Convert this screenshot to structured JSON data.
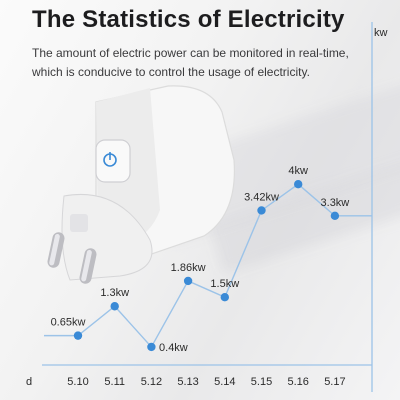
{
  "header": {
    "title": "The Statistics of Electricity",
    "desc_line1": "The amount of electric power can be monitored in real-time,",
    "desc_line2": "which is conducive to control the usage of electricity."
  },
  "product": {
    "name": "smart-plug",
    "button_icon": "power-icon"
  },
  "colors": {
    "accent": "#3a8ad6",
    "line": "#9cc3e8",
    "text": "#2b2b2b"
  },
  "chart_data": {
    "type": "line",
    "xlabel": "d",
    "ylabel": "kw",
    "categories": [
      "5.10",
      "5.11",
      "5.12",
      "5.13",
      "5.14",
      "5.15",
      "5.16",
      "5.17"
    ],
    "values": [
      0.65,
      1.3,
      0.4,
      1.86,
      1.5,
      3.42,
      4,
      3.3
    ],
    "labels": [
      "0.65kw",
      "1.3kw",
      "0.4kw",
      "1.86kw",
      "1.5kw",
      "3.42kw",
      "4kw",
      "3.3kw"
    ],
    "ylim": [
      0,
      6.5
    ],
    "grid": false
  }
}
